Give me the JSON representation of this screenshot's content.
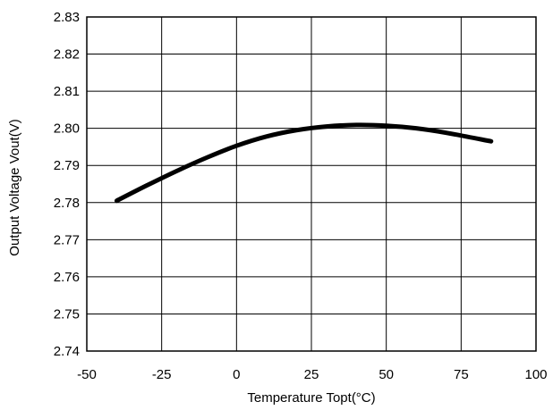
{
  "chart_data": {
    "type": "line",
    "title": "",
    "xlabel": "Temperature Topt(°C)",
    "ylabel": "Output Voltage Vout(V)",
    "xlim": [
      -50,
      100
    ],
    "ylim": [
      2.74,
      2.83
    ],
    "x_ticks": [
      "-50",
      "-25",
      "0",
      "25",
      "50",
      "75",
      "100"
    ],
    "y_ticks": [
      "2.74",
      "2.75",
      "2.76",
      "2.77",
      "2.78",
      "2.79",
      "2.80",
      "2.81",
      "2.82",
      "2.83"
    ],
    "grid": true,
    "legend": "none",
    "series": [
      {
        "color": "#000000",
        "x": [
          -40,
          -30,
          -20,
          -10,
          0,
          10,
          20,
          30,
          40,
          50,
          60,
          70,
          85
        ],
        "y": [
          2.7805,
          2.7846,
          2.7885,
          2.7921,
          2.7953,
          2.7978,
          2.7995,
          2.8005,
          2.8009,
          2.8007,
          2.8,
          2.7988,
          2.7965
        ]
      }
    ]
  }
}
